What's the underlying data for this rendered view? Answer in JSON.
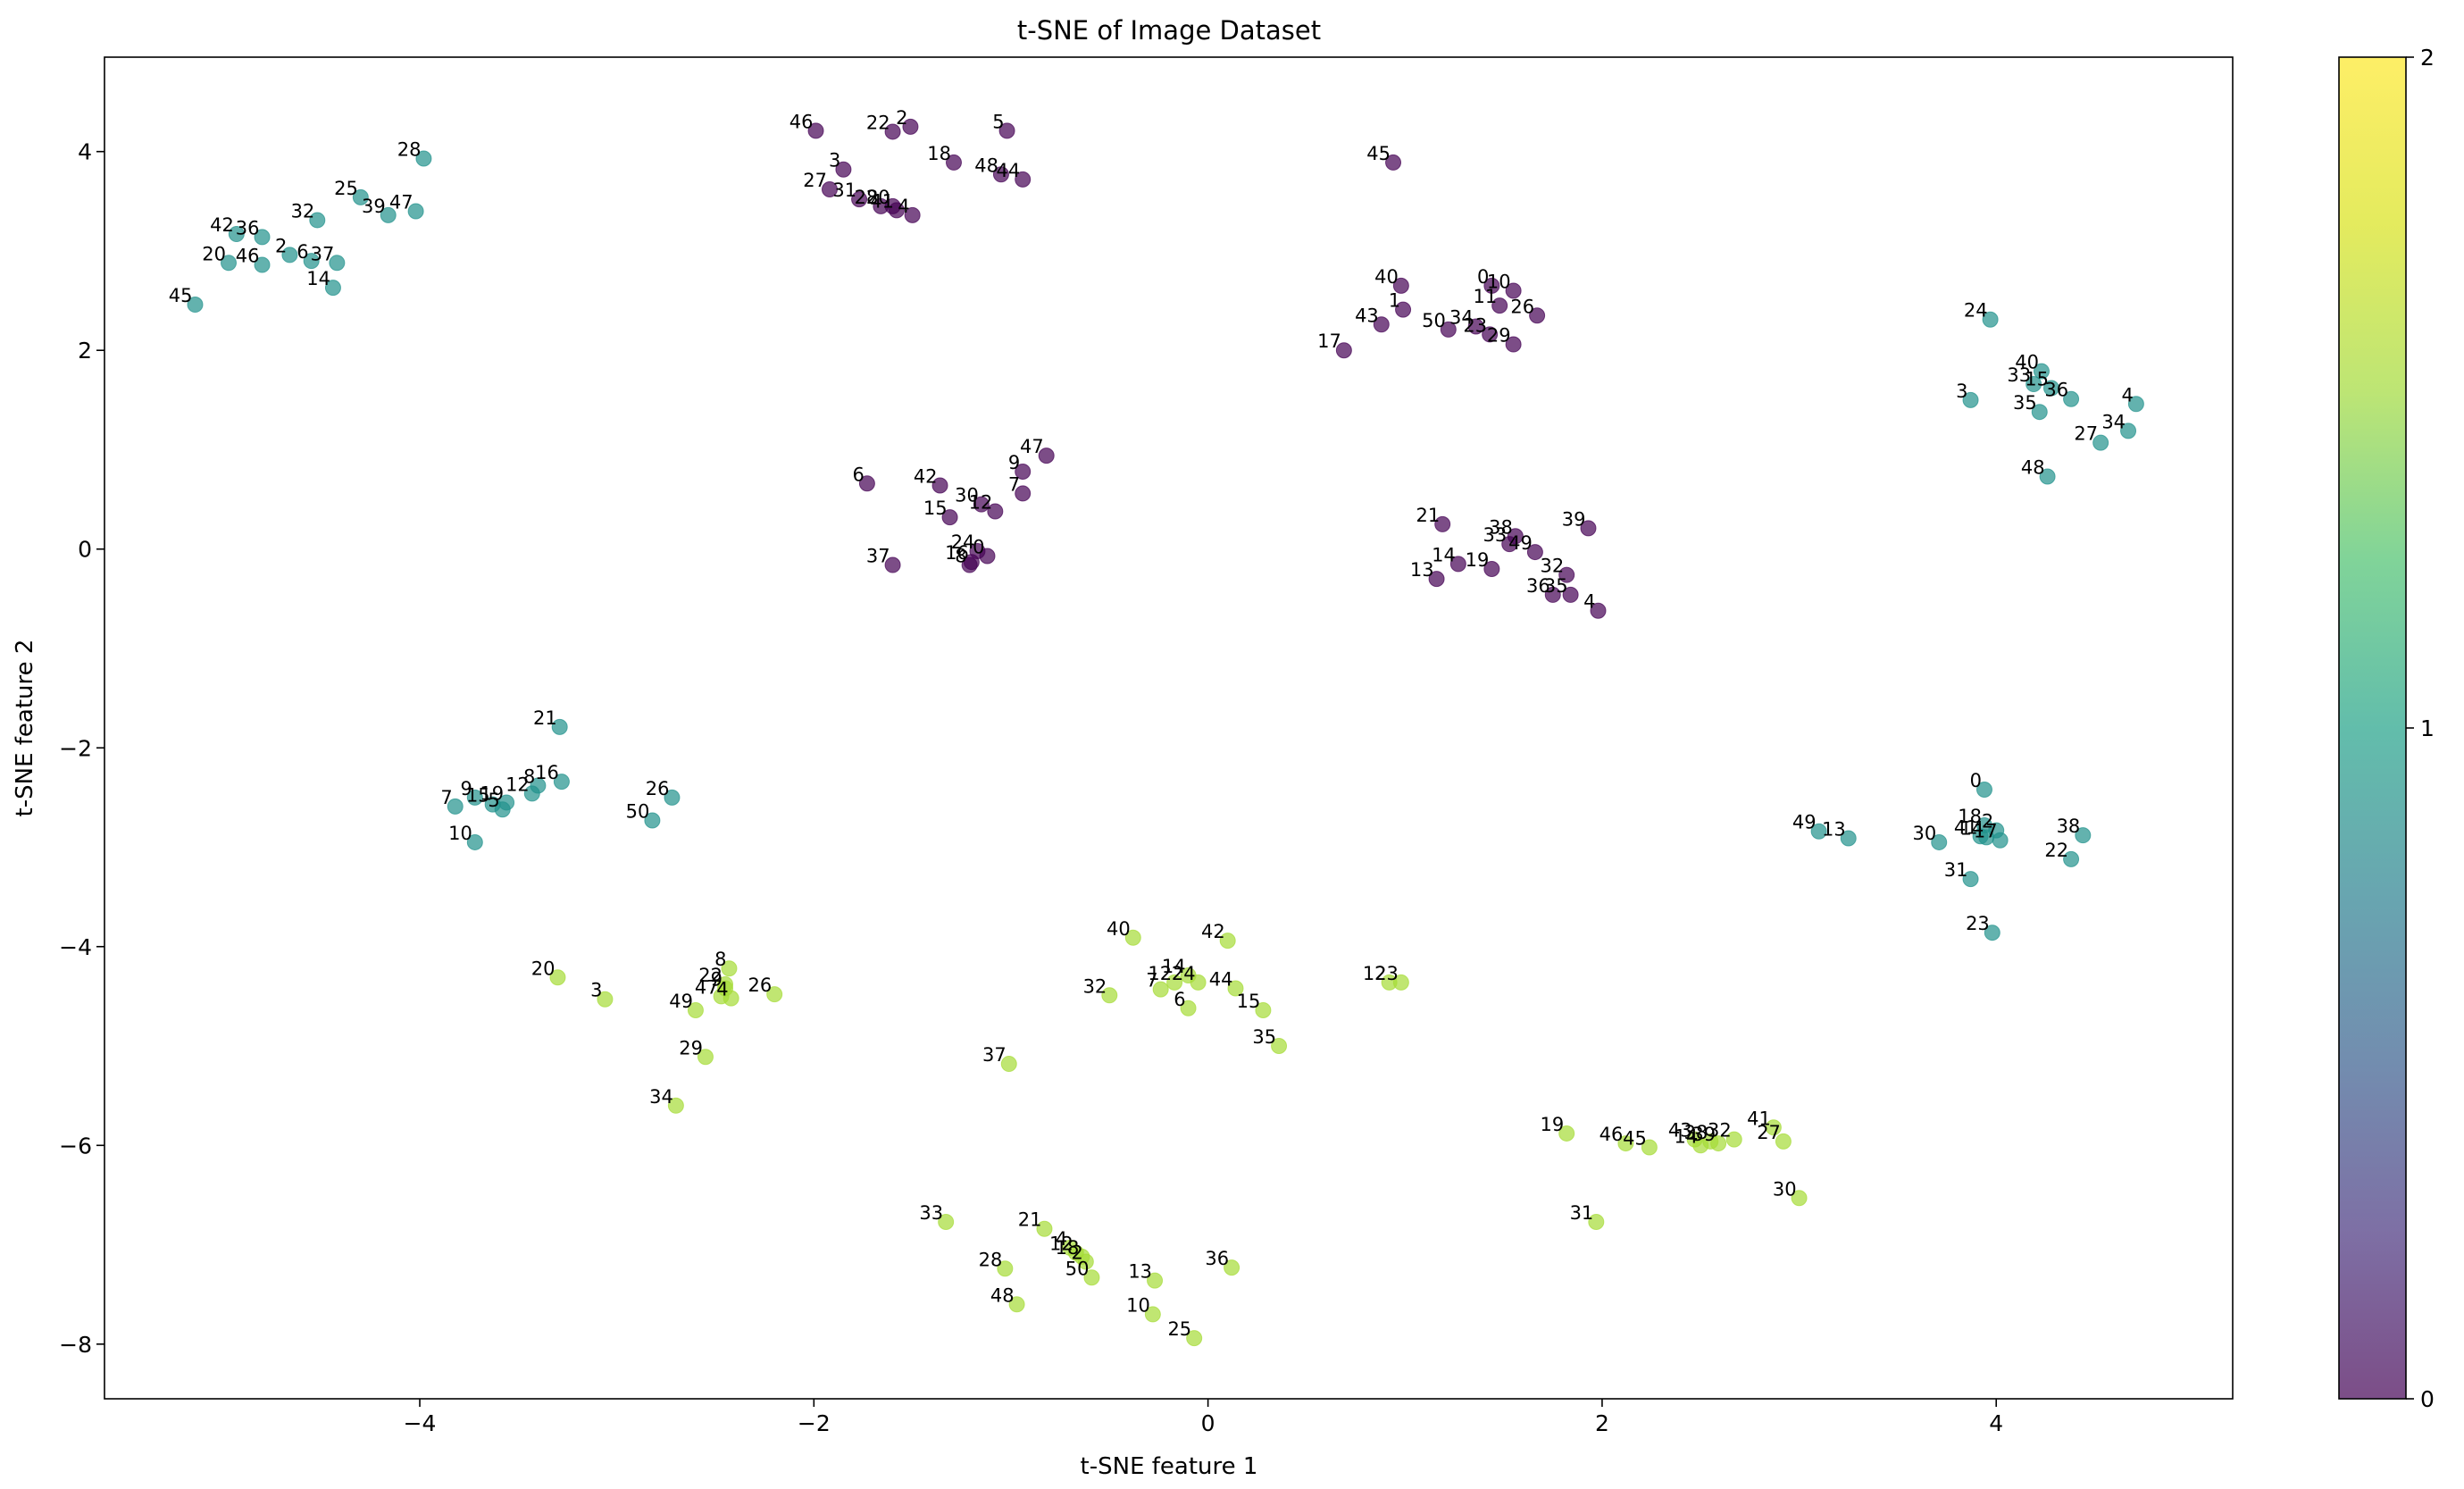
{
  "chart_data": {
    "type": "scatter",
    "title": "t-SNE of Image Dataset",
    "xlabel": "t-SNE feature 1",
    "ylabel": "t-SNE feature 2",
    "xlim": [
      -5.6,
      5.2
    ],
    "ylim": [
      -8.55,
      4.95
    ],
    "xticks": [
      -4,
      -2,
      0,
      2,
      4
    ],
    "yticks": [
      -8,
      -6,
      -4,
      -2,
      0,
      2,
      4
    ],
    "grid": false,
    "colormap": "viridis",
    "alpha": 0.7,
    "colorbar": {
      "ticks": [
        0,
        1,
        2
      ],
      "range": [
        0,
        2
      ]
    },
    "series": [
      {
        "class": 0,
        "color": "#440154",
        "points": [
          [
            -1.99,
            4.21,
            "46"
          ],
          [
            -1.6,
            4.2,
            "22"
          ],
          [
            -1.51,
            4.25,
            "2"
          ],
          [
            -1.02,
            4.21,
            "5"
          ],
          [
            -1.29,
            3.89,
            "18"
          ],
          [
            -1.85,
            3.82,
            "3"
          ],
          [
            -1.92,
            3.62,
            "27"
          ],
          [
            -1.77,
            3.52,
            "31"
          ],
          [
            -1.66,
            3.45,
            "28"
          ],
          [
            -1.6,
            3.45,
            "20"
          ],
          [
            -1.58,
            3.41,
            "41"
          ],
          [
            -1.5,
            3.36,
            "4"
          ],
          [
            -1.05,
            3.77,
            "48"
          ],
          [
            -0.94,
            3.72,
            "44"
          ],
          [
            0.94,
            3.89,
            "45"
          ],
          [
            0.98,
            2.65,
            "40"
          ],
          [
            1.44,
            2.65,
            "0"
          ],
          [
            1.55,
            2.6,
            "10"
          ],
          [
            1.48,
            2.45,
            "11"
          ],
          [
            0.99,
            2.41,
            "1"
          ],
          [
            1.67,
            2.35,
            "26"
          ],
          [
            0.88,
            2.26,
            "43"
          ],
          [
            1.22,
            2.21,
            "50"
          ],
          [
            1.36,
            2.24,
            "34"
          ],
          [
            1.43,
            2.16,
            "23"
          ],
          [
            1.55,
            2.06,
            "29"
          ],
          [
            0.69,
            2.0,
            "17"
          ],
          [
            -1.73,
            0.66,
            "6"
          ],
          [
            -0.82,
            0.94,
            "47"
          ],
          [
            -0.94,
            0.78,
            "9"
          ],
          [
            -1.36,
            0.64,
            "42"
          ],
          [
            -1.15,
            0.45,
            "30"
          ],
          [
            -1.08,
            0.38,
            "12"
          ],
          [
            -0.94,
            0.56,
            "7"
          ],
          [
            -1.31,
            0.32,
            "15"
          ],
          [
            -1.17,
            -0.02,
            "24"
          ],
          [
            -1.12,
            -0.07,
            "0"
          ],
          [
            -1.2,
            -0.13,
            "16"
          ],
          [
            -1.21,
            -0.16,
            "8"
          ],
          [
            -1.6,
            -0.16,
            "37"
          ],
          [
            1.19,
            0.25,
            "21"
          ],
          [
            1.56,
            0.13,
            "38"
          ],
          [
            1.53,
            0.05,
            "33"
          ],
          [
            1.66,
            -0.03,
            "49"
          ],
          [
            1.93,
            0.21,
            "39"
          ],
          [
            1.27,
            -0.15,
            "14"
          ],
          [
            1.44,
            -0.2,
            "19"
          ],
          [
            1.82,
            -0.26,
            "32"
          ],
          [
            1.16,
            -0.3,
            "13"
          ],
          [
            1.75,
            -0.46,
            "36"
          ],
          [
            1.84,
            -0.46,
            "35"
          ],
          [
            1.98,
            -0.62,
            "4"
          ]
        ]
      },
      {
        "class": 1,
        "color": "#21918c",
        "points": [
          [
            -3.98,
            3.93,
            "28"
          ],
          [
            -4.3,
            3.54,
            "25"
          ],
          [
            -4.16,
            3.36,
            "39"
          ],
          [
            -4.02,
            3.4,
            "47"
          ],
          [
            -4.52,
            3.31,
            "32"
          ],
          [
            -4.93,
            3.17,
            "42"
          ],
          [
            -4.8,
            3.14,
            "36"
          ],
          [
            -4.66,
            2.96,
            "2"
          ],
          [
            -4.55,
            2.9,
            "6"
          ],
          [
            -4.42,
            2.88,
            "37"
          ],
          [
            -4.97,
            2.88,
            "20"
          ],
          [
            -4.8,
            2.86,
            "46"
          ],
          [
            -4.44,
            2.63,
            "14"
          ],
          [
            -5.14,
            2.46,
            "45"
          ],
          [
            3.97,
            2.31,
            "24"
          ],
          [
            4.23,
            1.79,
            "40"
          ],
          [
            4.19,
            1.66,
            "33"
          ],
          [
            4.28,
            1.62,
            "15"
          ],
          [
            4.38,
            1.51,
            "36"
          ],
          [
            3.87,
            1.5,
            "3"
          ],
          [
            4.71,
            1.46,
            "4"
          ],
          [
            4.22,
            1.38,
            "35"
          ],
          [
            4.67,
            1.19,
            "34"
          ],
          [
            4.53,
            1.07,
            "27"
          ],
          [
            4.26,
            0.73,
            "48"
          ],
          [
            -3.29,
            -1.79,
            "21"
          ],
          [
            -3.72,
            -2.5,
            "9"
          ],
          [
            -3.56,
            -2.55,
            "19"
          ],
          [
            -3.63,
            -2.57,
            "15"
          ],
          [
            -3.58,
            -2.62,
            "5"
          ],
          [
            -3.82,
            -2.59,
            "7"
          ],
          [
            -3.4,
            -2.38,
            "8"
          ],
          [
            -3.28,
            -2.34,
            "16"
          ],
          [
            -3.43,
            -2.46,
            "12"
          ],
          [
            -2.72,
            -2.5,
            "26"
          ],
          [
            -2.82,
            -2.73,
            "50"
          ],
          [
            -3.72,
            -2.95,
            "10"
          ],
          [
            3.94,
            -2.42,
            "0"
          ],
          [
            3.94,
            -2.78,
            "18"
          ],
          [
            4.0,
            -2.83,
            "2"
          ],
          [
            3.92,
            -2.89,
            "41"
          ],
          [
            3.95,
            -2.9,
            "14"
          ],
          [
            4.02,
            -2.93,
            "17"
          ],
          [
            3.25,
            -2.91,
            "13"
          ],
          [
            3.1,
            -2.84,
            "49"
          ],
          [
            3.71,
            -2.95,
            "30"
          ],
          [
            4.44,
            -2.88,
            "38"
          ],
          [
            4.38,
            -3.12,
            "22"
          ],
          [
            3.87,
            -3.32,
            "31"
          ],
          [
            3.98,
            -3.86,
            "23"
          ]
        ]
      },
      {
        "class": 2,
        "color": "#a5db36",
        "points": [
          [
            -0.38,
            -3.91,
            "40"
          ],
          [
            0.1,
            -3.94,
            "42"
          ],
          [
            -0.1,
            -4.29,
            "14"
          ],
          [
            -0.17,
            -4.36,
            "12"
          ],
          [
            -0.05,
            -4.36,
            "24"
          ],
          [
            -0.24,
            -4.43,
            "7"
          ],
          [
            0.14,
            -4.42,
            "44"
          ],
          [
            -0.5,
            -4.49,
            "32"
          ],
          [
            -0.1,
            -4.62,
            "6"
          ],
          [
            0.28,
            -4.64,
            "15"
          ],
          [
            0.36,
            -5.0,
            "35"
          ],
          [
            -1.01,
            -5.18,
            "37"
          ],
          [
            0.92,
            -4.36,
            "12"
          ],
          [
            0.98,
            -4.36,
            "23"
          ],
          [
            -2.43,
            -4.22,
            "8"
          ],
          [
            -2.45,
            -4.38,
            "22"
          ],
          [
            -2.45,
            -4.42,
            "9"
          ],
          [
            -2.47,
            -4.5,
            "47"
          ],
          [
            -2.42,
            -4.52,
            "4"
          ],
          [
            -2.2,
            -4.48,
            "26"
          ],
          [
            -2.6,
            -4.64,
            "49"
          ],
          [
            -3.3,
            -4.31,
            "20"
          ],
          [
            -3.06,
            -4.53,
            "3"
          ],
          [
            -2.55,
            -5.11,
            "29"
          ],
          [
            -2.7,
            -5.6,
            "34"
          ],
          [
            1.82,
            -5.88,
            "19"
          ],
          [
            2.12,
            -5.98,
            "46"
          ],
          [
            2.24,
            -6.02,
            "45"
          ],
          [
            2.47,
            -5.94,
            "43"
          ],
          [
            2.5,
            -6.0,
            "14"
          ],
          [
            2.55,
            -5.96,
            "38"
          ],
          [
            2.59,
            -5.98,
            "39"
          ],
          [
            2.67,
            -5.94,
            "32"
          ],
          [
            2.87,
            -5.82,
            "41"
          ],
          [
            2.92,
            -5.96,
            "27"
          ],
          [
            1.97,
            -6.77,
            "31"
          ],
          [
            3.0,
            -6.53,
            "30"
          ],
          [
            -1.33,
            -6.77,
            "33"
          ],
          [
            -0.83,
            -6.84,
            "21"
          ],
          [
            -0.7,
            -7.03,
            "4"
          ],
          [
            -0.67,
            -7.08,
            "12"
          ],
          [
            -0.64,
            -7.12,
            "18"
          ],
          [
            -0.62,
            -7.17,
            "2"
          ],
          [
            -0.59,
            -7.33,
            "50"
          ],
          [
            -1.03,
            -7.24,
            "28"
          ],
          [
            0.12,
            -7.23,
            "36"
          ],
          [
            -0.27,
            -7.36,
            "13"
          ],
          [
            -0.97,
            -7.6,
            "48"
          ],
          [
            -0.28,
            -7.7,
            "10"
          ],
          [
            -0.07,
            -7.94,
            "25"
          ]
        ]
      }
    ]
  }
}
